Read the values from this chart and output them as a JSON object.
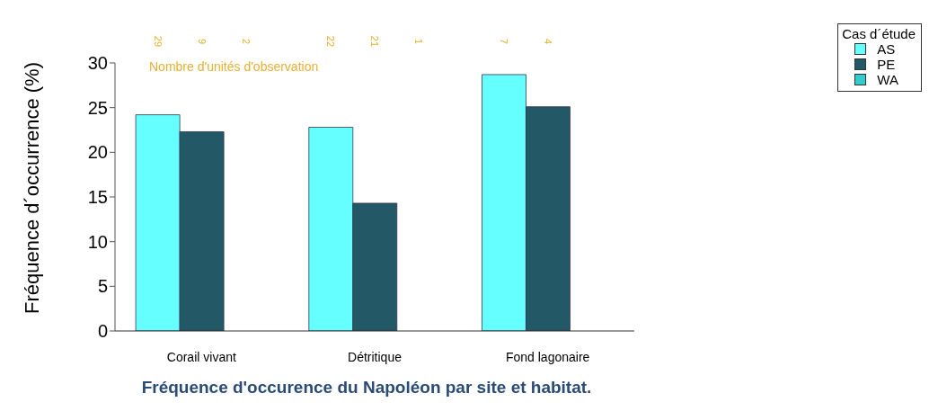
{
  "chart_data": {
    "type": "bar",
    "title": "Fréquence d'occurence du Napoléon par site et habitat.",
    "ylabel": "Fréquence d´occurrence (%)",
    "legend_title": "Cas d´étude",
    "categories": [
      "Corail vivant",
      "Détritique",
      "Fond lagonaire"
    ],
    "series": [
      {
        "name": "AS",
        "color": "#66ffff",
        "values": [
          24.2,
          22.8,
          28.7
        ]
      },
      {
        "name": "PE",
        "color": "#235866",
        "values": [
          22.3,
          14.3,
          25.1
        ]
      },
      {
        "name": "WA",
        "color": "#33cccc",
        "values": [
          0,
          0,
          null
        ]
      }
    ],
    "ylim": [
      0,
      30
    ],
    "yticks": [
      0,
      5,
      10,
      15,
      20,
      25,
      30
    ],
    "grid": false,
    "legend": "top right",
    "annotations": [
      "Nombre d'unités d'observation",
      "29",
      "9",
      "2",
      "22",
      "21",
      "1",
      "7",
      "4"
    ]
  }
}
